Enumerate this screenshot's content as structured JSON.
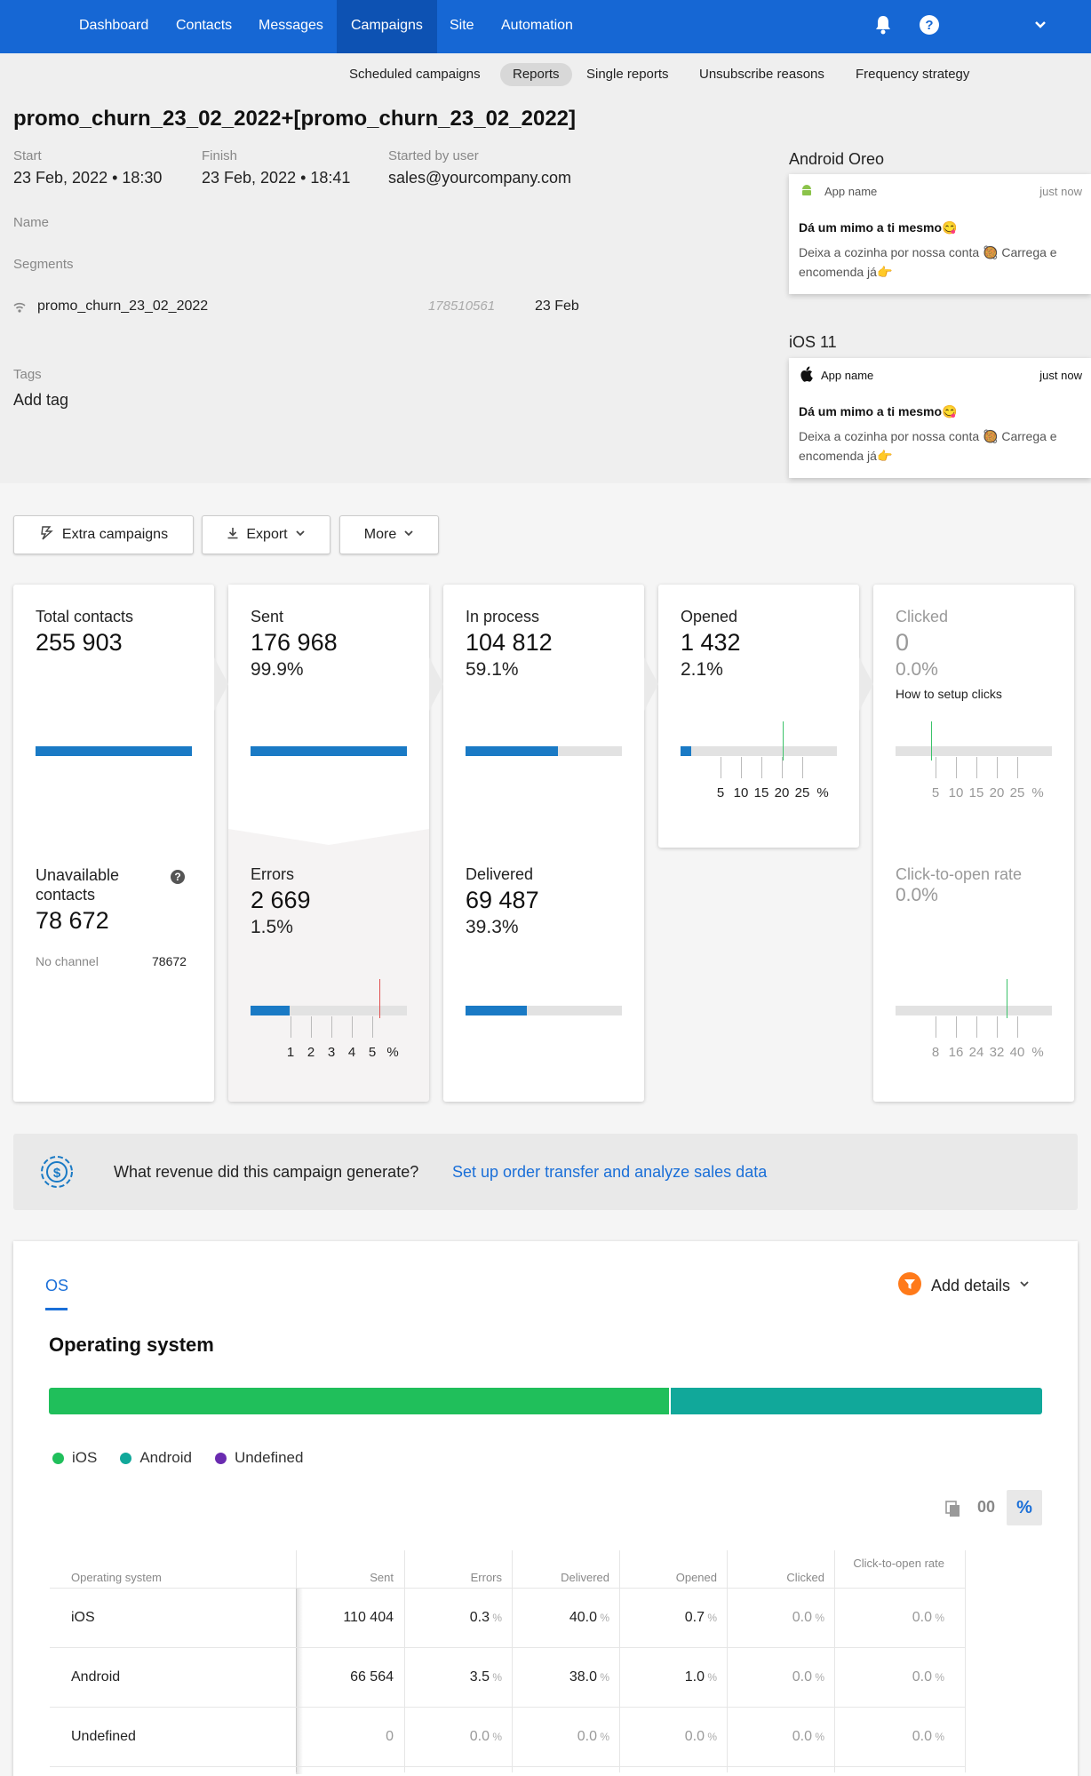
{
  "nav": {
    "items": [
      "Dashboard",
      "Contacts",
      "Messages",
      "Campaigns",
      "Site",
      "Automation"
    ],
    "active": "Campaigns",
    "icons": [
      "bell-icon",
      "help-icon",
      "chevron-down-icon"
    ]
  },
  "subnav": {
    "tabs": [
      "Scheduled campaigns",
      "Reports",
      "Single reports",
      "Unsubscribe reasons",
      "Frequency strategy"
    ],
    "active": "Reports"
  },
  "campaign": {
    "title": "promo_churn_23_02_2022+[promo_churn_23_02_2022]",
    "start_label": "Start",
    "start_value": "23 Feb, 2022 • 18:30",
    "finish_label": "Finish",
    "finish_value": "23 Feb, 2022 • 18:41",
    "user_label": "Started by user",
    "user_value": "sales@yourcompany.com",
    "name_label": "Name",
    "segments_label": "Segments",
    "segment": {
      "name": "promo_churn_23_02_2022",
      "id": "178510561",
      "date": "23 Feb"
    },
    "tags_label": "Tags",
    "add_tag": "Add tag"
  },
  "previews": [
    {
      "platform": "Android Oreo",
      "app": "App name",
      "time": "just now",
      "title": "Dá um mimo a ti mesmo😋",
      "body": "Deixa a cozinha por nossa conta 🥘 Carrega e encomenda já👉",
      "icon": "android-icon"
    },
    {
      "platform": "iOS 11",
      "app": "App name",
      "time": "just now",
      "title": "Dá um mimo a ti mesmo😋",
      "body": "Deixa a cozinha por nossa conta 🥘 Carrega e encomenda já👉",
      "icon": "apple-icon"
    }
  ],
  "actions": {
    "extra": "Extra campaigns",
    "export": "Export",
    "more": "More"
  },
  "stats": {
    "total": {
      "label": "Total contacts",
      "value": "255 903",
      "fill": 1.0
    },
    "unavailable": {
      "label": "Unavailable contacts",
      "value": "78 672",
      "no_channel_label": "No channel",
      "no_channel_value": "78672"
    },
    "sent": {
      "label": "Sent",
      "value": "176 968",
      "pct": "99.9%",
      "fill": 0.999
    },
    "errors": {
      "label": "Errors",
      "value": "2 669",
      "pct": "1.5%",
      "fill": 0.25,
      "ticks": [
        "1",
        "2",
        "3",
        "4",
        "5",
        "%"
      ],
      "marker": 5
    },
    "inprocess": {
      "label": "In process",
      "value": "104 812",
      "pct": "59.1%",
      "fill": 0.591
    },
    "delivered": {
      "label": "Delivered",
      "value": "69 487",
      "pct": "39.3%",
      "fill": 0.393
    },
    "opened": {
      "label": "Opened",
      "value": "1 432",
      "pct": "2.1%",
      "fill": 0.07,
      "ticks": [
        "5",
        "10",
        "15",
        "20",
        "25",
        "%"
      ],
      "marker": 20
    },
    "clicked": {
      "label": "Clicked",
      "value": "0",
      "pct": "0.0%",
      "help": "How to setup clicks",
      "fill": 0,
      "ticks": [
        "5",
        "10",
        "15",
        "20",
        "25",
        "%"
      ],
      "marker": 5
    },
    "cto": {
      "label": "Click-to-open rate",
      "pct": "0.0%",
      "fill": 0,
      "ticks": [
        "8",
        "16",
        "24",
        "32",
        "40",
        "%"
      ],
      "marker": 32
    }
  },
  "revenue": {
    "question": "What revenue did this campaign generate?",
    "link": "Set up order transfer and analyze sales data"
  },
  "os": {
    "tab": "OS",
    "add_details": "Add details",
    "title": "Operating system",
    "share": [
      {
        "name": "iOS",
        "pct": 62.4,
        "color": "#20bf5b"
      },
      {
        "name": "Android",
        "pct": 37.6,
        "color": "#11a89a"
      },
      {
        "name": "Undefined",
        "pct": 0,
        "color": "#6a2bb0"
      }
    ],
    "toggle": {
      "count": "00",
      "percent": "%"
    },
    "headers": [
      "Operating system",
      "Sent",
      "Errors",
      "Delivered",
      "Opened",
      "Clicked",
      "Click-to-open rate"
    ],
    "rows": [
      {
        "os": "iOS",
        "sent": "110 404",
        "errors": "0.3",
        "delivered": "40.0",
        "opened": "0.7",
        "clicked": "0.0",
        "cto": "0.0"
      },
      {
        "os": "Android",
        "sent": "66 564",
        "errors": "3.5",
        "delivered": "38.0",
        "opened": "1.0",
        "clicked": "0.0",
        "cto": "0.0"
      },
      {
        "os": "Undefined",
        "sent": "0",
        "errors": "0.0",
        "delivered": "0.0",
        "opened": "0.0",
        "clicked": "0.0",
        "cto": "0.0"
      }
    ],
    "unit": "%"
  }
}
